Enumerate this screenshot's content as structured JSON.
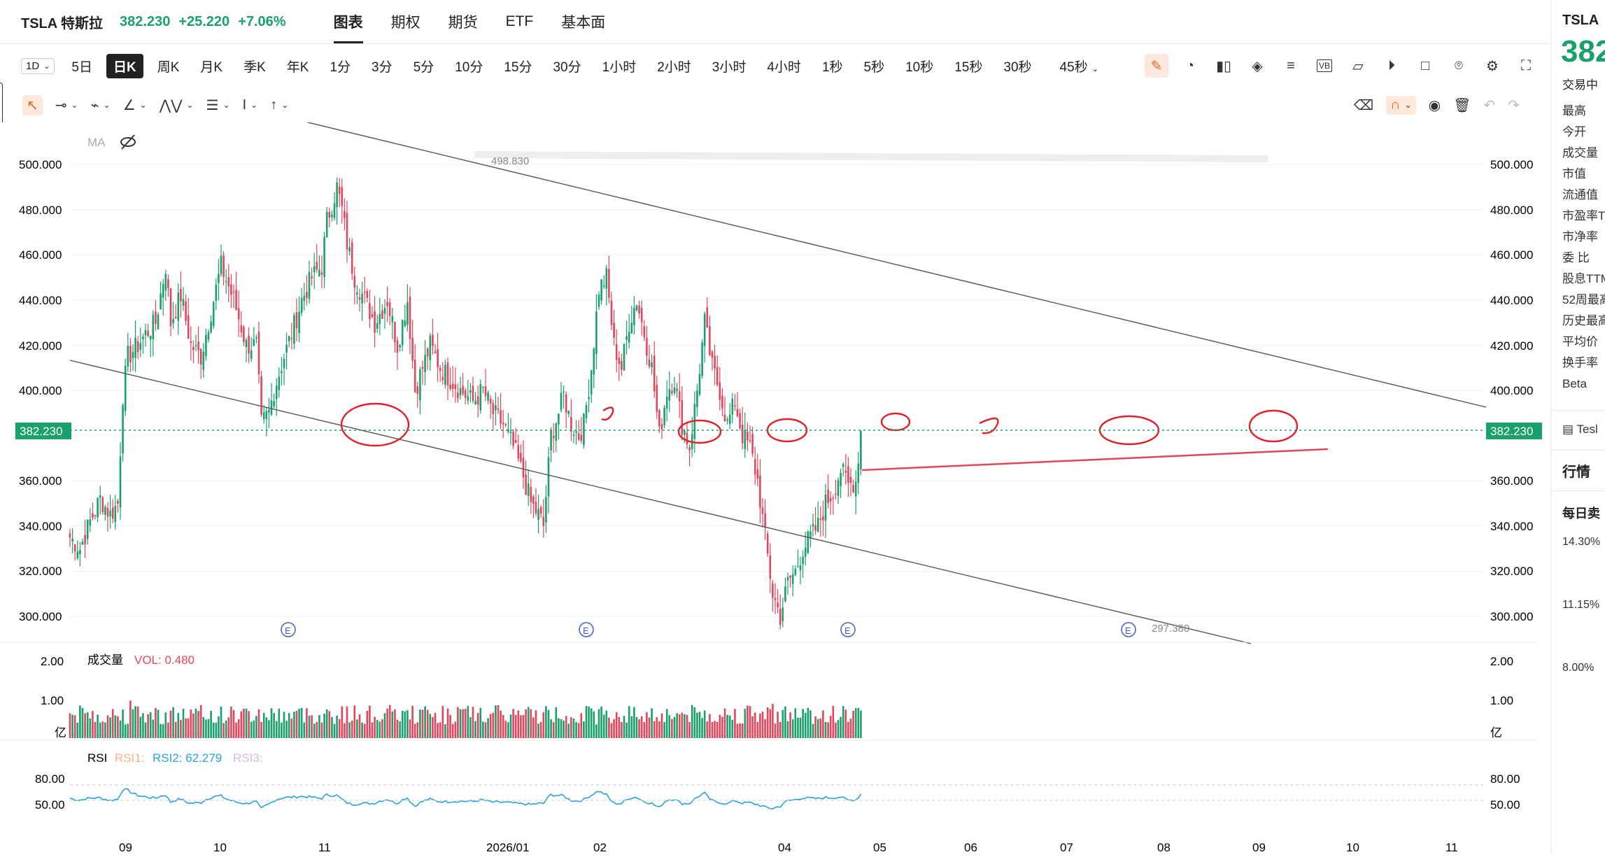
{
  "header": {
    "symbol": "TSLA 特斯拉",
    "price": "382.230",
    "change": "+25.220",
    "change_pct": "+7.06%",
    "tabs": [
      "图表",
      "期权",
      "期货",
      "ETF",
      "基本面"
    ],
    "active_tab": "图表"
  },
  "interval_bar": {
    "period_select": "1D",
    "intervals": [
      "5日",
      "日K",
      "周K",
      "月K",
      "季K",
      "年K",
      "1分",
      "3分",
      "5分",
      "10分",
      "15分",
      "30分",
      "1小时",
      "2小时",
      "3小时",
      "4小时",
      "1秒",
      "5秒",
      "10秒",
      "15秒",
      "30秒",
      "45秒"
    ],
    "selected": "日K"
  },
  "toolbar_icons": [
    "pencil-icon",
    "gauge-icon",
    "candles-icon",
    "layers-icon",
    "align-icon",
    "vb-icon",
    "chart-icon",
    "play-icon",
    "square-icon",
    "camera-icon",
    "settings-icon",
    "fullscreen-icon"
  ],
  "drawing_tools": [
    "cursor-icon",
    "line-tool-icon",
    "brush-tool-icon",
    "angle-tool-icon",
    "pattern-tool-icon",
    "fib-tool-icon",
    "text-tool-icon",
    "arrow-tool-icon"
  ],
  "drawing_right_icons": [
    "eraser-icon",
    "magnet-icon",
    "eye-icon",
    "trash-icon",
    "undo-icon",
    "redo-icon"
  ],
  "chart": {
    "ma_label": "MA",
    "price_axis": [
      "500.000",
      "480.000",
      "460.000",
      "440.000",
      "420.000",
      "400.000",
      "360.000",
      "340.000",
      "320.000",
      "300.000"
    ],
    "current_price_label": "382.230",
    "high_label": "498.830",
    "low_label": "297.380",
    "earnings_marker": "E",
    "volume": {
      "title": "成交量",
      "value_label": "VOL: 0.480",
      "axis": [
        "2.00",
        "1.00"
      ],
      "unit": "亿"
    },
    "rsi": {
      "title": "RSI",
      "rsi1": "RSI1:",
      "rsi2": "RSI2: 62.279",
      "rsi3": "RSI3:",
      "axis": [
        "80.00",
        "50.00"
      ]
    },
    "x_axis": [
      "09",
      "10",
      "11",
      "2026/01",
      "02",
      "04",
      "05",
      "06",
      "07",
      "08",
      "09",
      "10",
      "11"
    ]
  },
  "sidebar": {
    "symbol": "TSLA",
    "price": "382",
    "status": "交易中",
    "rows": [
      "最高",
      "今开",
      "成交量",
      "市值",
      "流通值",
      "市盈率T",
      "市净率",
      "委 比",
      "股息TTM",
      "52周最高",
      "历史最高",
      "平均价",
      "换手率",
      "Beta"
    ],
    "link": "Tesl",
    "section1": "行情",
    "section2": "每日卖",
    "pcts": [
      "14.30%",
      "11.15%",
      "8.00%"
    ]
  },
  "colors": {
    "up": "#1aa06d",
    "down": "#e0475c",
    "annotation": "#e0202a",
    "rsi": "#2aa3d8",
    "accent": "#e8671a"
  },
  "chart_data": {
    "type": "candlestick",
    "symbol": "TSLA",
    "interval": "日K",
    "x": [
      "09",
      "10",
      "11",
      "2026/01",
      "02",
      "04",
      "05",
      "06",
      "07",
      "08",
      "09",
      "10",
      "11"
    ],
    "ylim": [
      290,
      505
    ],
    "y_ticks": [
      300,
      320,
      340,
      360,
      380,
      400,
      420,
      440,
      460,
      480,
      500
    ],
    "last": 382.23,
    "high": 498.83,
    "low": 297.38,
    "close_path_approx": [
      [
        0,
        335
      ],
      [
        4,
        330
      ],
      [
        8,
        342
      ],
      [
        12,
        352
      ],
      [
        16,
        345
      ],
      [
        19,
        350
      ],
      [
        21,
        398
      ],
      [
        23,
        415
      ],
      [
        27,
        420
      ],
      [
        30,
        425
      ],
      [
        34,
        430
      ],
      [
        38,
        455
      ],
      [
        40,
        430
      ],
      [
        44,
        442
      ],
      [
        48,
        420
      ],
      [
        52,
        415
      ],
      [
        55,
        430
      ],
      [
        60,
        455
      ],
      [
        65,
        440
      ],
      [
        70,
        420
      ],
      [
        74,
        420
      ],
      [
        76,
        385
      ],
      [
        79,
        390
      ],
      [
        81,
        400
      ],
      [
        85,
        415
      ],
      [
        88,
        425
      ],
      [
        92,
        440
      ],
      [
        96,
        450
      ],
      [
        100,
        455
      ],
      [
        102,
        475
      ],
      [
        106,
        490
      ],
      [
        108,
        480
      ],
      [
        110,
        465
      ],
      [
        113,
        450
      ],
      [
        117,
        440
      ],
      [
        121,
        430
      ],
      [
        126,
        440
      ],
      [
        130,
        420
      ],
      [
        134,
        440
      ],
      [
        137,
        400
      ],
      [
        140,
        410
      ],
      [
        143,
        420
      ],
      [
        147,
        410
      ],
      [
        151,
        405
      ],
      [
        155,
        400
      ],
      [
        160,
        395
      ],
      [
        164,
        400
      ],
      [
        168,
        390
      ],
      [
        172,
        385
      ],
      [
        176,
        375
      ],
      [
        180,
        362
      ],
      [
        183,
        350
      ],
      [
        186,
        345
      ],
      [
        188,
        340
      ],
      [
        191,
        380
      ],
      [
        194,
        390
      ],
      [
        196,
        398
      ],
      [
        199,
        385
      ],
      [
        202,
        380
      ],
      [
        204,
        385
      ],
      [
        207,
        410
      ],
      [
        210,
        445
      ],
      [
        213,
        450
      ],
      [
        216,
        420
      ],
      [
        219,
        410
      ],
      [
        222,
        430
      ],
      [
        225,
        440
      ],
      [
        228,
        425
      ],
      [
        231,
        410
      ],
      [
        234,
        380
      ],
      [
        237,
        400
      ],
      [
        240,
        405
      ],
      [
        243,
        385
      ],
      [
        246,
        375
      ],
      [
        249,
        400
      ],
      [
        252,
        430
      ],
      [
        255,
        410
      ],
      [
        258,
        400
      ],
      [
        261,
        385
      ],
      [
        264,
        395
      ],
      [
        267,
        380
      ],
      [
        270,
        375
      ],
      [
        273,
        360
      ],
      [
        276,
        335
      ],
      [
        279,
        310
      ],
      [
        282,
        300
      ],
      [
        285,
        315
      ],
      [
        288,
        320
      ],
      [
        291,
        330
      ],
      [
        294,
        335
      ],
      [
        297,
        340
      ],
      [
        300,
        350
      ],
      [
        303,
        355
      ],
      [
        306,
        365
      ],
      [
        309,
        358
      ],
      [
        312,
        360
      ],
      [
        314,
        382
      ]
    ],
    "volume_axis": [
      "2.00",
      "1.00"
    ],
    "rsi2_last": 62.279,
    "rsi_levels": [
      80,
      50
    ]
  }
}
